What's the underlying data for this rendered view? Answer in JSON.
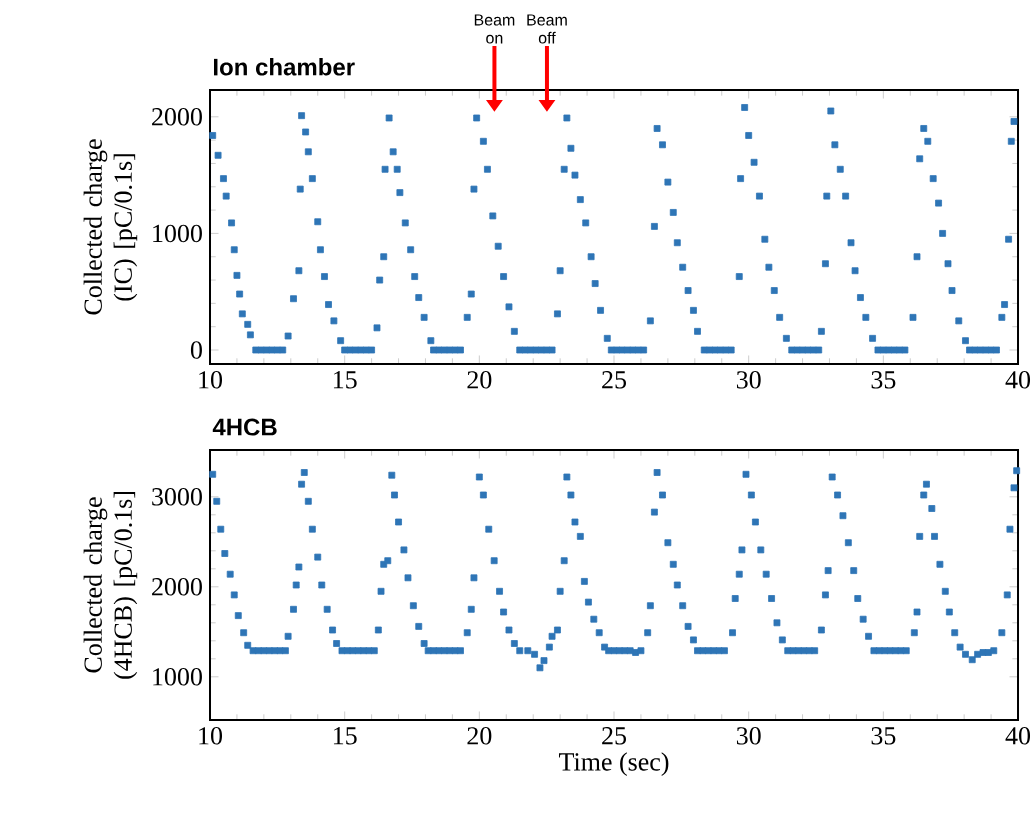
{
  "chart_data": [
    {
      "type": "scatter",
      "title": "Ion chamber",
      "ylabel": "Collected charge (IC) [pC/0.1s]",
      "color": "#2e75b6",
      "marker": "square",
      "xlim": [
        10,
        40
      ],
      "xticks": [
        10,
        15,
        20,
        25,
        30,
        35,
        40
      ],
      "ylim": [
        -120,
        2230
      ],
      "yticks": [
        0,
        1000,
        2000
      ],
      "annotations": [
        "Beam on",
        "Beam off"
      ],
      "x": [
        10.1,
        10.3,
        10.5,
        10.6,
        10.8,
        10.9,
        11.0,
        11.1,
        11.2,
        11.4,
        11.5,
        11.7,
        11.9,
        12.1,
        12.3,
        12.5,
        12.7,
        12.9,
        13.1,
        13.3,
        13.35,
        13.4,
        13.55,
        13.65,
        13.8,
        14.0,
        14.1,
        14.25,
        14.4,
        14.6,
        14.85,
        15.0,
        15.2,
        15.4,
        15.6,
        15.8,
        16.0,
        16.2,
        16.3,
        16.45,
        16.5,
        16.65,
        16.8,
        16.95,
        17.05,
        17.25,
        17.45,
        17.6,
        17.75,
        17.95,
        18.2,
        18.3,
        18.5,
        18.7,
        18.9,
        19.1,
        19.3,
        19.55,
        19.7,
        19.8,
        19.9,
        20.15,
        20.3,
        20.5,
        20.7,
        20.9,
        21.1,
        21.3,
        21.5,
        21.7,
        21.9,
        22.1,
        22.3,
        22.5,
        22.7,
        22.9,
        23.0,
        23.15,
        23.25,
        23.4,
        23.55,
        23.75,
        23.95,
        24.15,
        24.3,
        24.5,
        24.75,
        24.9,
        25.1,
        25.3,
        25.5,
        25.7,
        25.9,
        26.1,
        26.35,
        26.5,
        26.6,
        26.8,
        27.0,
        27.2,
        27.35,
        27.55,
        27.75,
        27.95,
        28.1,
        28.35,
        28.55,
        28.75,
        28.95,
        29.15,
        29.35,
        29.65,
        29.7,
        29.85,
        30.0,
        30.2,
        30.4,
        30.6,
        30.75,
        30.95,
        31.15,
        31.4,
        31.6,
        31.8,
        32.0,
        32.2,
        32.4,
        32.6,
        32.7,
        32.85,
        32.9,
        33.05,
        33.2,
        33.4,
        33.6,
        33.8,
        33.95,
        34.15,
        34.35,
        34.6,
        34.8,
        35.0,
        35.2,
        35.4,
        35.6,
        35.8,
        36.1,
        36.25,
        36.35,
        36.5,
        36.65,
        36.85,
        37.05,
        37.2,
        37.4,
        37.55,
        37.8,
        38.05,
        38.2,
        38.4,
        38.6,
        38.8,
        39.0,
        39.2,
        39.4,
        39.5,
        39.65,
        39.75,
        39.85
      ],
      "values": [
        1840,
        1670,
        1470,
        1320,
        1090,
        860,
        640,
        480,
        310,
        220,
        130,
        0,
        0,
        0,
        0,
        0,
        0,
        120,
        440,
        680,
        1380,
        2010,
        1870,
        1700,
        1470,
        1100,
        860,
        630,
        390,
        250,
        80,
        0,
        0,
        0,
        0,
        0,
        0,
        190,
        600,
        800,
        1550,
        1990,
        1700,
        1550,
        1350,
        1090,
        860,
        630,
        450,
        280,
        80,
        0,
        0,
        0,
        0,
        0,
        0,
        280,
        480,
        1380,
        1990,
        1790,
        1550,
        1150,
        890,
        630,
        370,
        160,
        0,
        0,
        0,
        0,
        0,
        0,
        0,
        310,
        680,
        1550,
        1990,
        1730,
        1500,
        1290,
        1090,
        800,
        570,
        340,
        100,
        0,
        0,
        0,
        0,
        0,
        0,
        0,
        250,
        1060,
        1900,
        1760,
        1440,
        1180,
        920,
        710,
        510,
        340,
        160,
        0,
        0,
        0,
        0,
        0,
        0,
        630,
        1470,
        2080,
        1840,
        1610,
        1320,
        950,
        710,
        510,
        280,
        100,
        0,
        0,
        0,
        0,
        0,
        0,
        160,
        740,
        1320,
        2050,
        1760,
        1550,
        1320,
        920,
        680,
        450,
        280,
        100,
        0,
        0,
        0,
        0,
        0,
        0,
        280,
        800,
        1640,
        1900,
        1790,
        1470,
        1260,
        1000,
        740,
        510,
        250,
        80,
        0,
        0,
        0,
        0,
        0,
        0,
        280,
        390,
        950,
        1790,
        1960
      ]
    },
    {
      "type": "scatter",
      "title": "4HCB",
      "xlabel": "Time (sec)",
      "ylabel": "Collected charge (4HCB) [pC/0.1s]",
      "color": "#2e75b6",
      "marker": "square",
      "xlim": [
        10,
        40
      ],
      "xticks": [
        10,
        15,
        20,
        25,
        30,
        35,
        40
      ],
      "ylim": [
        520,
        3520
      ],
      "yticks": [
        1000,
        2000,
        3000
      ],
      "x": [
        10.1,
        10.25,
        10.4,
        10.55,
        10.75,
        10.9,
        11.05,
        11.25,
        11.4,
        11.6,
        11.8,
        12.0,
        12.2,
        12.4,
        12.6,
        12.8,
        12.9,
        13.1,
        13.2,
        13.3,
        13.4,
        13.5,
        13.65,
        13.8,
        14.0,
        14.15,
        14.35,
        14.55,
        14.7,
        14.9,
        15.1,
        15.3,
        15.5,
        15.7,
        15.9,
        16.1,
        16.25,
        16.35,
        16.45,
        16.6,
        16.75,
        16.85,
        17.0,
        17.2,
        17.35,
        17.55,
        17.75,
        17.95,
        18.1,
        18.3,
        18.5,
        18.7,
        18.9,
        19.1,
        19.3,
        19.55,
        19.7,
        19.8,
        20.0,
        20.15,
        20.35,
        20.55,
        20.75,
        20.9,
        21.1,
        21.3,
        21.5,
        21.8,
        22.05,
        22.25,
        22.4,
        22.6,
        22.7,
        22.9,
        23.0,
        23.15,
        23.25,
        23.4,
        23.55,
        23.75,
        23.9,
        24.05,
        24.25,
        24.45,
        24.65,
        24.8,
        25.0,
        25.2,
        25.4,
        25.6,
        25.8,
        26.0,
        26.25,
        26.35,
        26.5,
        26.6,
        26.8,
        27.0,
        27.2,
        27.35,
        27.55,
        27.75,
        27.95,
        28.1,
        28.3,
        28.5,
        28.7,
        28.9,
        29.1,
        29.4,
        29.5,
        29.65,
        29.75,
        29.9,
        30.1,
        30.25,
        30.45,
        30.65,
        30.85,
        31.05,
        31.25,
        31.45,
        31.65,
        31.85,
        32.05,
        32.25,
        32.45,
        32.7,
        32.85,
        32.95,
        33.1,
        33.3,
        33.5,
        33.7,
        33.9,
        34.05,
        34.25,
        34.45,
        34.65,
        34.85,
        35.05,
        35.25,
        35.45,
        35.65,
        35.85,
        36.15,
        36.25,
        36.35,
        36.5,
        36.6,
        36.8,
        36.9,
        37.1,
        37.3,
        37.45,
        37.65,
        37.85,
        38.05,
        38.3,
        38.5,
        38.7,
        38.9,
        39.1,
        39.4,
        39.6,
        39.7,
        39.85,
        39.95
      ],
      "values": [
        3250,
        2950,
        2640,
        2370,
        2140,
        1910,
        1680,
        1490,
        1350,
        1290,
        1290,
        1290,
        1290,
        1290,
        1290,
        1290,
        1450,
        1750,
        2020,
        2220,
        3140,
        3270,
        2950,
        2640,
        2330,
        2020,
        1750,
        1520,
        1370,
        1290,
        1290,
        1290,
        1290,
        1290,
        1290,
        1290,
        1520,
        1950,
        2250,
        2290,
        3240,
        3020,
        2720,
        2410,
        2100,
        1790,
        1560,
        1370,
        1290,
        1290,
        1290,
        1290,
        1290,
        1290,
        1290,
        1490,
        1750,
        2100,
        3220,
        3020,
        2640,
        2290,
        1950,
        1720,
        1520,
        1370,
        1290,
        1290,
        1250,
        1100,
        1180,
        1330,
        1450,
        1520,
        1950,
        2290,
        3220,
        3020,
        2720,
        2560,
        2060,
        1830,
        1640,
        1490,
        1330,
        1290,
        1290,
        1290,
        1290,
        1290,
        1270,
        1290,
        1490,
        1790,
        2830,
        3270,
        3020,
        2490,
        2250,
        2020,
        1790,
        1560,
        1410,
        1290,
        1290,
        1290,
        1290,
        1290,
        1290,
        1490,
        1870,
        2140,
        2410,
        3250,
        3020,
        2720,
        2410,
        2140,
        1870,
        1600,
        1410,
        1290,
        1290,
        1290,
        1290,
        1290,
        1290,
        1520,
        1910,
        2180,
        3220,
        3020,
        2790,
        2490,
        2180,
        1870,
        1640,
        1450,
        1290,
        1290,
        1290,
        1290,
        1290,
        1290,
        1290,
        1490,
        1720,
        2560,
        3020,
        3140,
        2870,
        2560,
        2250,
        1950,
        1720,
        1490,
        1330,
        1250,
        1190,
        1250,
        1270,
        1270,
        1290,
        1490,
        1910,
        2640,
        3100,
        3290
      ]
    }
  ]
}
